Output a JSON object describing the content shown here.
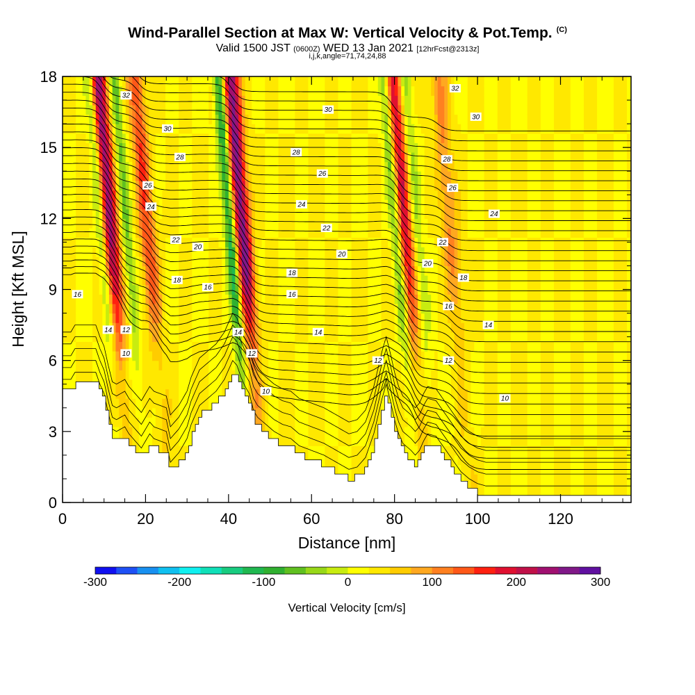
{
  "header": {
    "title": "Wind-Parallel Section at Max W: Vertical Velocity & Pot.Temp.",
    "copyright_mark": "(C)",
    "valid_prefix": "Valid 1500 JST",
    "valid_utc": "(0600Z)",
    "valid_date": "WED 13 Jan 2021",
    "forecast": "[12hrFcst@2313z]",
    "grid_info": "i,j,k,angle=71,74,24,88"
  },
  "chart_data": {
    "type": "heatmap",
    "title": "Wind-Parallel Section at Max W: Vertical Velocity & Pot.Temp.",
    "xlabel": "Distance [nm]",
    "ylabel": "Height [Kft MSL]",
    "xlim": [
      0,
      137
    ],
    "ylim": [
      0,
      18
    ],
    "xticks": [
      0,
      20,
      40,
      60,
      80,
      100,
      120
    ],
    "yticks": [
      0,
      3,
      6,
      9,
      12,
      15,
      18
    ],
    "grid": false,
    "colorbar": {
      "label": "Vertical Velocity [cm/s]",
      "min": -300,
      "max": 300,
      "ticks": [
        -300,
        -200,
        -100,
        0,
        100,
        200,
        300
      ],
      "colors": [
        "#1010f0",
        "#1e50f5",
        "#1890f0",
        "#10c0f0",
        "#10f0f0",
        "#10e0b8",
        "#18cc80",
        "#20b850",
        "#30b030",
        "#60c020",
        "#98d818",
        "#c8ec10",
        "#ffff00",
        "#ffe800",
        "#ffcc00",
        "#ffa820",
        "#ff8020",
        "#ff5818",
        "#ff2010",
        "#e01030",
        "#c01048",
        "#a01070",
        "#801888",
        "#6010a0"
      ]
    },
    "updraft_cores": [
      {
        "x": 13,
        "w": 220
      },
      {
        "x": 22,
        "w": 120
      },
      {
        "x": 45,
        "w": 240
      },
      {
        "x": 84,
        "w": 170
      },
      {
        "x": 95,
        "w": 80
      }
    ],
    "downdraft_cores": [
      {
        "x": 11,
        "w": -90
      },
      {
        "x": 17,
        "w": -80
      },
      {
        "x": 42,
        "w": -150
      },
      {
        "x": 82,
        "w": -110
      },
      {
        "x": 87,
        "w": -60
      }
    ],
    "terrain_height_kft": [
      [
        0,
        4.8
      ],
      [
        2,
        4.8
      ],
      [
        3,
        5.1
      ],
      [
        8,
        5.1
      ],
      [
        9,
        4.6
      ],
      [
        10,
        4.2
      ],
      [
        11,
        3.4
      ],
      [
        12,
        2.7
      ],
      [
        13,
        2.6
      ],
      [
        15,
        2.8
      ],
      [
        16,
        2.5
      ],
      [
        18,
        2.1
      ],
      [
        19,
        1.9
      ],
      [
        21,
        2.5
      ],
      [
        22,
        2.3
      ],
      [
        25,
        2.1
      ],
      [
        26,
        1.3
      ],
      [
        28,
        1.7
      ],
      [
        30,
        2.3
      ],
      [
        31,
        2.9
      ],
      [
        33,
        3.7
      ],
      [
        35,
        4.0
      ],
      [
        37,
        4.3
      ],
      [
        39,
        4.8
      ],
      [
        41,
        5.6
      ],
      [
        42,
        5.4
      ],
      [
        43,
        4.9
      ],
      [
        44,
        4.5
      ],
      [
        45,
        4.2
      ],
      [
        46,
        3.5
      ],
      [
        47,
        3.2
      ],
      [
        49,
        2.9
      ],
      [
        51,
        2.6
      ],
      [
        53,
        2.4
      ],
      [
        55,
        2.3
      ],
      [
        57,
        2.0
      ],
      [
        60,
        1.8
      ],
      [
        63,
        1.6
      ],
      [
        65,
        1.4
      ],
      [
        67,
        1.2
      ],
      [
        69,
        1.0
      ],
      [
        71,
        1.1
      ],
      [
        73,
        1.5
      ],
      [
        75,
        2.5
      ],
      [
        77,
        4.0
      ],
      [
        78,
        4.6
      ],
      [
        79,
        3.9
      ],
      [
        80,
        3.1
      ],
      [
        81,
        2.5
      ],
      [
        82,
        2.1
      ],
      [
        84,
        1.8
      ],
      [
        85,
        1.6
      ],
      [
        86,
        1.8
      ],
      [
        87,
        2.2
      ],
      [
        88,
        2.5
      ],
      [
        90,
        2.4
      ],
      [
        92,
        1.9
      ],
      [
        94,
        1.4
      ],
      [
        96,
        0.9
      ],
      [
        98,
        0.6
      ],
      [
        100,
        0.4
      ],
      [
        102,
        0.3
      ],
      [
        137,
        0.3
      ]
    ],
    "potential_temperature_contours": {
      "unit": "C",
      "levels": [
        10,
        12,
        14,
        16,
        18,
        20,
        22,
        24,
        26,
        28,
        30,
        32
      ],
      "labels": [
        {
          "text": "32",
          "x": 15.3,
          "y": 17.2
        },
        {
          "text": "30",
          "x": 25.3,
          "y": 15.8
        },
        {
          "text": "28",
          "x": 28.3,
          "y": 14.6
        },
        {
          "text": "26",
          "x": 20.6,
          "y": 13.4
        },
        {
          "text": "24",
          "x": 21.3,
          "y": 12.5
        },
        {
          "text": "22",
          "x": 27.3,
          "y": 11.1
        },
        {
          "text": "20",
          "x": 32.6,
          "y": 10.8
        },
        {
          "text": "18",
          "x": 27.6,
          "y": 9.4
        },
        {
          "text": "16",
          "x": 35.0,
          "y": 9.1
        },
        {
          "text": "16",
          "x": 3.6,
          "y": 8.8
        },
        {
          "text": "14",
          "x": 11.0,
          "y": 7.3
        },
        {
          "text": "12",
          "x": 15.3,
          "y": 7.3
        },
        {
          "text": "10",
          "x": 15.3,
          "y": 6.3
        },
        {
          "text": "14",
          "x": 42.3,
          "y": 7.2
        },
        {
          "text": "12",
          "x": 45.6,
          "y": 6.3
        },
        {
          "text": "10",
          "x": 49.0,
          "y": 4.7
        },
        {
          "text": "30",
          "x": 64.0,
          "y": 16.6
        },
        {
          "text": "28",
          "x": 56.3,
          "y": 14.8
        },
        {
          "text": "26",
          "x": 62.6,
          "y": 13.9
        },
        {
          "text": "24",
          "x": 57.6,
          "y": 12.6
        },
        {
          "text": "22",
          "x": 63.6,
          "y": 11.6
        },
        {
          "text": "20",
          "x": 67.3,
          "y": 10.5
        },
        {
          "text": "18",
          "x": 55.3,
          "y": 9.7
        },
        {
          "text": "16",
          "x": 55.3,
          "y": 8.8
        },
        {
          "text": "14",
          "x": 61.6,
          "y": 7.2
        },
        {
          "text": "12",
          "x": 76.0,
          "y": 6.0
        },
        {
          "text": "32",
          "x": 94.6,
          "y": 17.5
        },
        {
          "text": "30",
          "x": 99.6,
          "y": 16.3
        },
        {
          "text": "28",
          "x": 92.6,
          "y": 14.5
        },
        {
          "text": "26",
          "x": 94.0,
          "y": 13.3
        },
        {
          "text": "24",
          "x": 104.0,
          "y": 12.2
        },
        {
          "text": "22",
          "x": 91.6,
          "y": 11.0
        },
        {
          "text": "20",
          "x": 88.0,
          "y": 10.1
        },
        {
          "text": "18",
          "x": 96.6,
          "y": 9.5
        },
        {
          "text": "16",
          "x": 93.0,
          "y": 8.3
        },
        {
          "text": "14",
          "x": 102.6,
          "y": 7.5
        },
        {
          "text": "12",
          "x": 93.0,
          "y": 6.0
        },
        {
          "text": "10",
          "x": 106.6,
          "y": 4.4
        }
      ]
    }
  }
}
